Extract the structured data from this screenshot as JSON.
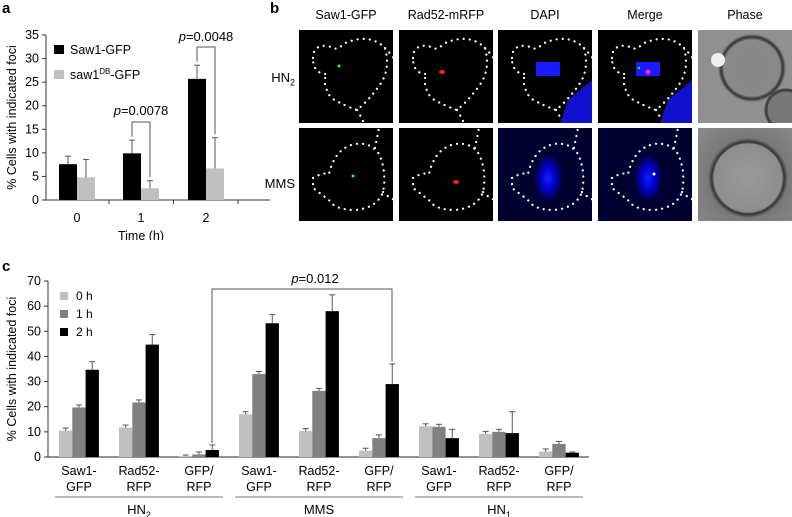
{
  "panels": {
    "a": "a",
    "b": "b",
    "c": "c"
  },
  "microscopy": {
    "columns": [
      "Saw1-GFP",
      "Rad52-mRFP",
      "DAPI",
      "Merge",
      "Phase"
    ],
    "rows": [
      {
        "label": "HN",
        "sub": "2"
      },
      {
        "label": "MMS",
        "sub": ""
      }
    ]
  },
  "chart_data": [
    {
      "type": "bar",
      "panel": "a",
      "categories": [
        "0",
        "1",
        "2"
      ],
      "xlabel": "Time (h)",
      "ylabel": "% Cells with indicated foci",
      "ylim": [
        0,
        35
      ],
      "yticks": [
        0,
        5,
        10,
        15,
        20,
        25,
        30,
        35
      ],
      "legend": "top-left",
      "series": [
        {
          "name": "Saw1-GFP",
          "name_sup": "",
          "name_tail": "",
          "color": "#000000",
          "values": [
            7.6,
            9.9,
            25.7
          ],
          "errors": [
            1.7,
            2.8,
            2.9
          ]
        },
        {
          "name": "saw1",
          "name_sup": "DB",
          "name_tail": "-GFP",
          "color": "#c0c0c0",
          "values": [
            4.8,
            2.5,
            6.7
          ],
          "errors": [
            3.8,
            1.6,
            6.5
          ]
        }
      ],
      "annotations": [
        {
          "p_label": "p",
          "text": "=0.0078",
          "category": "1"
        },
        {
          "p_label": "p",
          "text": "=0.0048",
          "category": "2"
        }
      ]
    },
    {
      "type": "bar",
      "panel": "c",
      "categories": [
        "Saw1-\nGFP",
        "Rad52-\nRFP",
        "GFP/\nRFP",
        "Saw1-\nGFP",
        "Rad52-\nRFP",
        "GFP/\nRFP",
        "Saw1-\nGFP",
        "Rad52-\nRFP",
        "GFP/\nRFP"
      ],
      "groups": [
        {
          "label": "HN",
          "sub": "2"
        },
        {
          "label": "MMS",
          "sub": ""
        },
        {
          "label": "HN",
          "sub": "1"
        }
      ],
      "ylabel": "% Cells with indicated foci",
      "ylim": [
        0,
        70
      ],
      "yticks": [
        0,
        10,
        20,
        30,
        40,
        50,
        60,
        70
      ],
      "legend": "top-left",
      "series": [
        {
          "name": "0 h",
          "color": "#c0c0c0",
          "values": [
            10.5,
            11.7,
            0.3,
            17,
            10.3,
            2.5,
            12.2,
            9.2,
            2.2
          ],
          "errors": [
            1,
            1,
            0.5,
            1,
            1,
            1,
            1,
            1,
            1
          ]
        },
        {
          "name": "1 h",
          "color": "#808080",
          "values": [
            19.7,
            21.7,
            1,
            33,
            26.3,
            7.5,
            12,
            10,
            5.2
          ],
          "errors": [
            1,
            1,
            1,
            1,
            1,
            1.3,
            1,
            1,
            1
          ]
        },
        {
          "name": "2 h",
          "color": "#000000",
          "values": [
            34.7,
            44.7,
            2.8,
            53.2,
            58,
            29,
            7.5,
            9.5,
            1.7
          ],
          "errors": [
            3.2,
            4,
            2,
            3.5,
            6.5,
            8,
            3.5,
            8.5,
            0.3
          ]
        }
      ],
      "annotations": [
        {
          "p_label": "p",
          "text": "=0.012",
          "from": "HN2 GFP/RFP",
          "to": "MMS GFP/RFP"
        }
      ]
    }
  ]
}
